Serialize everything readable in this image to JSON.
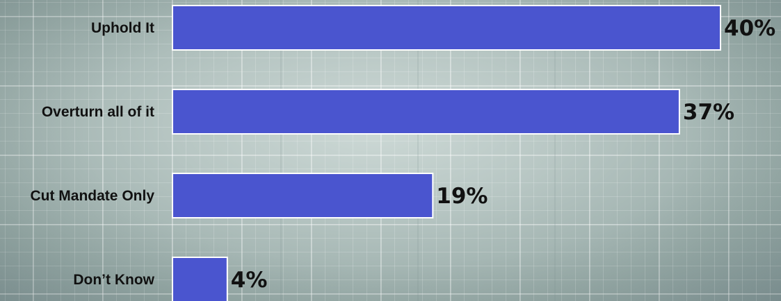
{
  "chart_data": {
    "type": "bar",
    "orientation": "horizontal",
    "categories": [
      "Uphold It",
      "Overturn all of it",
      "Cut Mandate Only",
      "Don’t Know"
    ],
    "values": [
      40,
      37,
      19,
      4
    ],
    "value_labels": [
      "40%",
      "37%",
      "19%",
      "4%"
    ],
    "unit": "%",
    "xlim": [
      0,
      40
    ],
    "bar_color": "#4a55cf",
    "bar_border_color": "#ffffff",
    "grid": true,
    "legend": "none"
  }
}
